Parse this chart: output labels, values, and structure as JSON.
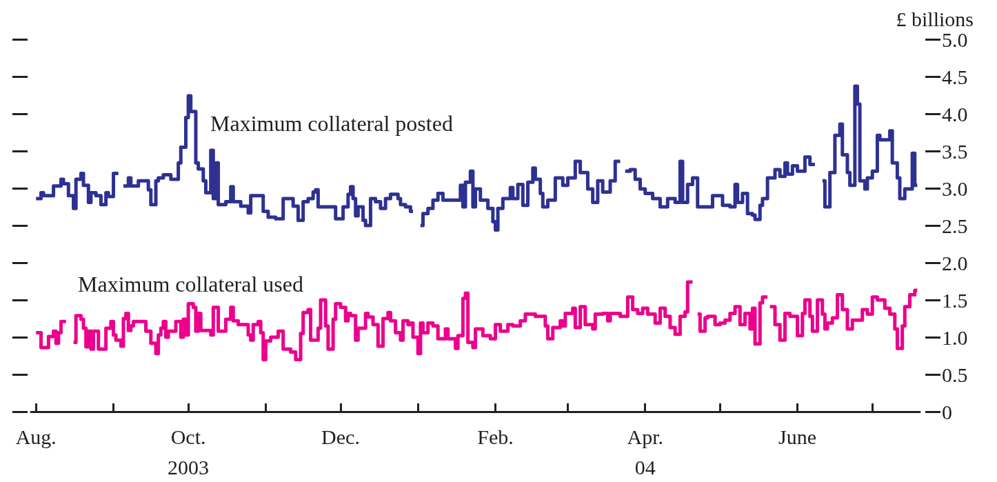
{
  "chart_data": {
    "type": "step",
    "ylabel": "£ billions",
    "marker": "none",
    "grid": false,
    "xlim": [
      "2003-07-30",
      "2004-07-20"
    ],
    "xticks": [
      {
        "value": "2003-08-01",
        "label": "Aug."
      },
      {
        "value": "2003-09-01",
        "label": null
      },
      {
        "value": "2003-10-01",
        "label": "Oct.\n2003"
      },
      {
        "value": "2003-11-01",
        "label": null
      },
      {
        "value": "2003-12-01",
        "label": "Dec."
      },
      {
        "value": "2004-01-01",
        "label": null
      },
      {
        "value": "2004-02-01",
        "label": "Feb."
      },
      {
        "value": "2004-03-01",
        "label": null
      },
      {
        "value": "2004-04-01",
        "label": "Apr.\n04"
      },
      {
        "value": "2004-05-01",
        "label": null
      },
      {
        "value": "2004-06-01",
        "label": "June"
      },
      {
        "value": "2004-07-01",
        "label": null
      }
    ],
    "ylim": [
      0,
      5
    ],
    "yticks": [
      0,
      {
        "value": 0.5,
        "label": "0.5"
      },
      {
        "value": 1,
        "label": "1.0"
      },
      {
        "value": 1.5,
        "label": "1.5"
      },
      {
        "value": 2,
        "label": "2.0"
      },
      {
        "value": 2.5,
        "label": "2.5"
      },
      {
        "value": 3,
        "label": "3.0"
      },
      {
        "value": 3.5,
        "label": "3.5"
      },
      {
        "value": 4,
        "label": "4.0"
      },
      {
        "value": 4.5,
        "label": "4.5"
      },
      {
        "value": 5,
        "label": "5.0"
      }
    ],
    "series": [
      {
        "name": "Maximum collateral posted",
        "color": "#2e3192",
        "x": [
          "2003-08-01",
          "2003-08-03",
          "2003-08-04",
          "2003-08-08",
          "2003-08-11",
          "2003-08-12",
          "2003-08-14",
          "2003-08-16",
          "2003-08-17",
          "2003-08-19",
          "2003-08-20",
          "2003-08-22",
          "2003-08-23",
          "2003-08-25",
          "2003-08-27",
          "2003-08-29",
          "2003-08-30",
          "2003-09-01",
          "2003-09-03",
          "2003-09-05",
          "2003-09-07",
          "2003-09-08",
          "2003-09-11",
          "2003-09-15",
          "2003-09-16",
          "2003-09-18",
          "2003-09-19",
          "2003-09-21",
          "2003-09-24",
          "2003-09-27",
          "2003-09-28",
          "2003-09-30",
          "2003-10-01",
          "2003-10-02",
          "2003-10-04",
          "2003-10-05",
          "2003-10-07",
          "2003-10-08",
          "2003-10-10",
          "2003-10-11",
          "2003-10-12",
          "2003-10-13",
          "2003-10-16",
          "2003-10-18",
          "2003-10-19",
          "2003-10-22",
          "2003-10-25",
          "2003-10-26",
          "2003-10-31",
          "2003-11-02",
          "2003-11-05",
          "2003-11-08",
          "2003-11-12",
          "2003-11-14",
          "2003-11-16",
          "2003-11-18",
          "2003-11-20",
          "2003-11-21",
          "2003-11-22",
          "2003-11-29",
          "2003-12-02",
          "2003-12-04",
          "2003-12-05",
          "2003-12-06",
          "2003-12-07",
          "2003-12-08",
          "2003-12-10",
          "2003-12-11",
          "2003-12-13",
          "2003-12-15",
          "2003-12-17",
          "2003-12-19",
          "2003-12-21",
          "2003-12-24",
          "2003-12-25",
          "2003-12-27",
          "2003-12-29",
          "2003-12-30",
          "2004-01-02",
          "2004-01-03",
          "2004-01-05",
          "2004-01-07",
          "2004-01-09",
          "2004-01-11",
          "2004-01-18",
          "2004-01-19",
          "2004-01-20",
          "2004-01-22",
          "2004-01-23",
          "2004-01-24",
          "2004-01-26",
          "2004-01-29",
          "2004-01-31",
          "2004-02-01",
          "2004-02-02",
          "2004-02-04",
          "2004-02-07",
          "2004-02-08",
          "2004-02-10",
          "2004-02-12",
          "2004-02-14",
          "2004-02-16",
          "2004-02-17",
          "2004-02-19",
          "2004-02-20",
          "2004-02-22",
          "2004-02-25",
          "2004-02-28",
          "2004-03-01",
          "2004-03-04",
          "2004-03-06",
          "2004-03-09",
          "2004-03-11",
          "2004-03-13",
          "2004-03-15",
          "2004-03-18",
          "2004-03-20",
          "2004-03-22",
          "2004-03-24",
          "2004-03-26",
          "2004-03-28",
          "2004-03-30",
          "2004-04-01",
          "2004-04-04",
          "2004-04-07",
          "2004-04-10",
          "2004-04-13",
          "2004-04-15",
          "2004-04-16",
          "2004-04-18",
          "2004-04-20",
          "2004-04-22",
          "2004-04-26",
          "2004-04-28",
          "2004-05-02",
          "2004-05-05",
          "2004-05-07",
          "2004-05-08",
          "2004-05-10",
          "2004-05-12",
          "2004-05-14",
          "2004-05-15",
          "2004-05-17",
          "2004-05-18",
          "2004-05-20",
          "2004-05-23",
          "2004-05-25",
          "2004-05-27",
          "2004-05-28",
          "2004-05-30",
          "2004-06-01",
          "2004-06-03",
          "2004-06-04",
          "2004-06-06",
          "2004-06-08",
          "2004-06-11",
          "2004-06-12",
          "2004-06-14",
          "2004-06-16",
          "2004-06-18",
          "2004-06-19",
          "2004-06-21",
          "2004-06-22",
          "2004-06-24",
          "2004-06-25",
          "2004-06-26",
          "2004-06-28",
          "2004-06-29",
          "2004-07-01",
          "2004-07-03",
          "2004-07-04",
          "2004-07-08",
          "2004-07-09",
          "2004-07-11",
          "2004-07-12",
          "2004-07-14",
          "2004-07-17",
          "2004-07-18",
          "2004-07-19"
        ],
        "values": [
          2.86,
          2.94,
          2.9,
          3.03,
          3.12,
          3.06,
          2.9,
          2.73,
          3.12,
          3.2,
          3.04,
          2.81,
          2.94,
          2.9,
          2.78,
          2.94,
          2.89,
          3.2,
          null,
          3.03,
          3.14,
          3.03,
          3.1,
          2.98,
          2.78,
          3.1,
          3.14,
          3.18,
          3.12,
          3.34,
          3.55,
          3.95,
          4.24,
          4.03,
          3.34,
          3.26,
          3.1,
          2.94,
          3.51,
          2.86,
          3.34,
          2.78,
          2.82,
          3.02,
          2.82,
          2.76,
          2.67,
          2.9,
          2.69,
          2.61,
          2.59,
          2.86,
          2.76,
          2.57,
          2.82,
          2.86,
          2.95,
          2.98,
          2.75,
          2.59,
          2.75,
          2.92,
          3.02,
          2.86,
          2.63,
          2.75,
          2.57,
          2.5,
          2.86,
          2.82,
          2.73,
          2.86,
          2.92,
          2.86,
          2.78,
          2.75,
          2.69,
          null,
          2.5,
          2.66,
          2.73,
          2.84,
          2.93,
          2.84,
          3.04,
          2.75,
          3.08,
          3.23,
          2.75,
          2.99,
          2.84,
          2.73,
          2.55,
          2.44,
          2.73,
          2.86,
          3.01,
          2.86,
          3.05,
          2.77,
          3.08,
          3.27,
          3.12,
          2.93,
          2.75,
          2.84,
          3.14,
          3.04,
          3.14,
          3.36,
          3.21,
          2.99,
          2.81,
          3.1,
          2.95,
          3.1,
          3.36,
          null,
          3.23,
          3.25,
          3.12,
          2.99,
          2.93,
          2.86,
          2.75,
          2.86,
          2.81,
          3.36,
          2.81,
          3.05,
          3.14,
          2.75,
          2.75,
          2.9,
          2.77,
          2.75,
          3.05,
          2.81,
          2.93,
          2.66,
          2.64,
          2.58,
          2.77,
          2.86,
          3.14,
          3.25,
          3.16,
          3.34,
          3.19,
          3.3,
          3.23,
          3.23,
          3.42,
          3.32,
          null,
          3.1,
          2.75,
          3.21,
          3.71,
          3.86,
          3.45,
          3.21,
          3.04,
          4.37,
          4.13,
          3.1,
          2.99,
          3.14,
          3.23,
          3.71,
          3.65,
          3.77,
          3.34,
          3.14,
          2.86,
          2.99,
          3.47,
          3.04,
          3.04
        ]
      },
      {
        "name": "Maximum collateral used",
        "color": "#ec008c",
        "x": [
          "2003-08-01",
          "2003-08-03",
          "2003-08-06",
          "2003-08-08",
          "2003-08-09",
          "2003-08-10",
          "2003-08-11",
          "2003-08-13",
          "2003-08-16",
          "2003-08-17",
          "2003-08-19",
          "2003-08-20",
          "2003-08-21",
          "2003-08-22",
          "2003-08-23",
          "2003-08-24",
          "2003-08-26",
          "2003-08-29",
          "2003-08-31",
          "2003-09-01",
          "2003-09-02",
          "2003-09-04",
          "2003-09-05",
          "2003-09-06",
          "2003-09-07",
          "2003-09-08",
          "2003-09-09",
          "2003-09-14",
          "2003-09-16",
          "2003-09-18",
          "2003-09-19",
          "2003-09-20",
          "2003-09-21",
          "2003-09-22",
          "2003-09-23",
          "2003-09-26",
          "2003-09-28",
          "2003-09-29",
          "2003-09-30",
          "2003-10-01",
          "2003-10-03",
          "2003-10-04",
          "2003-10-05",
          "2003-10-06",
          "2003-10-10",
          "2003-10-11",
          "2003-10-13",
          "2003-10-16",
          "2003-10-18",
          "2003-10-19",
          "2003-10-21",
          "2003-10-25",
          "2003-10-26",
          "2003-10-27",
          "2003-10-29",
          "2003-10-30",
          "2003-10-31",
          "2003-11-01",
          "2003-11-03",
          "2003-11-06",
          "2003-11-08",
          "2003-11-11",
          "2003-11-13",
          "2003-11-15",
          "2003-11-16",
          "2003-11-18",
          "2003-11-19",
          "2003-11-22",
          "2003-11-23",
          "2003-11-25",
          "2003-11-26",
          "2003-11-28",
          "2003-11-29",
          "2003-12-01",
          "2003-12-03",
          "2003-12-04",
          "2003-12-05",
          "2003-12-07",
          "2003-12-08",
          "2003-12-11",
          "2003-12-12",
          "2003-12-14",
          "2003-12-16",
          "2003-12-18",
          "2003-12-20",
          "2003-12-21",
          "2003-12-23",
          "2003-12-25",
          "2003-12-26",
          "2003-12-28",
          "2003-12-29",
          "2003-12-30",
          "2004-01-01",
          "2004-01-02",
          "2004-01-03",
          "2004-01-05",
          "2004-01-07",
          "2004-01-09",
          "2004-01-12",
          "2004-01-13",
          "2004-01-16",
          "2004-01-17",
          "2004-01-19",
          "2004-01-20",
          "2004-01-21",
          "2004-01-23",
          "2004-01-24",
          "2004-01-27",
          "2004-01-30",
          "2004-02-01",
          "2004-02-03",
          "2004-02-06",
          "2004-02-08",
          "2004-02-11",
          "2004-02-13",
          "2004-02-17",
          "2004-02-21",
          "2004-02-22",
          "2004-02-24",
          "2004-02-27",
          "2004-02-28",
          "2004-02-29",
          "2004-03-03",
          "2004-03-04",
          "2004-03-06",
          "2004-03-08",
          "2004-03-11",
          "2004-03-12",
          "2004-03-15",
          "2004-03-17",
          "2004-03-18",
          "2004-03-22",
          "2004-03-25",
          "2004-03-27",
          "2004-03-29",
          "2004-03-31",
          "2004-04-02",
          "2004-04-05",
          "2004-04-07",
          "2004-04-09",
          "2004-04-11",
          "2004-04-13",
          "2004-04-15",
          "2004-04-17",
          "2004-04-18",
          "2004-04-20",
          "2004-04-22",
          "2004-04-23",
          "2004-04-25",
          "2004-04-26",
          "2004-04-29",
          "2004-05-01",
          "2004-05-03",
          "2004-05-05",
          "2004-05-07",
          "2004-05-09",
          "2004-05-11",
          "2004-05-13",
          "2004-05-14",
          "2004-05-15",
          "2004-05-17",
          "2004-05-18",
          "2004-05-20",
          "2004-05-21",
          "2004-05-23",
          "2004-05-25",
          "2004-05-27",
          "2004-05-29",
          "2004-06-01",
          "2004-06-03",
          "2004-06-04",
          "2004-06-06",
          "2004-06-07",
          "2004-06-09",
          "2004-06-11",
          "2004-06-12",
          "2004-06-13",
          "2004-06-15",
          "2004-06-17",
          "2004-06-19",
          "2004-06-21",
          "2004-06-23",
          "2004-06-27",
          "2004-06-29",
          "2004-07-01",
          "2004-07-03",
          "2004-07-06",
          "2004-07-08",
          "2004-07-10",
          "2004-07-11",
          "2004-07-13",
          "2004-07-14",
          "2004-07-16",
          "2004-07-18",
          "2004-07-19"
        ],
        "values": [
          1.06,
          0.86,
          1.01,
          1.08,
          0.92,
          1.06,
          1.21,
          null,
          0.93,
          1.29,
          1.24,
          1.12,
          0.87,
          1.08,
          0.84,
          1.08,
          0.84,
          1.12,
          1.21,
          1.03,
          0.96,
          0.88,
          1.25,
          1.32,
          1.09,
          1.15,
          1.21,
          1.08,
          0.92,
          0.78,
          1.03,
          1.12,
          1.21,
          1.0,
          1.08,
          1.21,
          1.0,
          1.24,
          1.03,
          1.45,
          1.4,
          1.08,
          1.32,
          1.09,
          1.03,
          1.4,
          1.08,
          1.24,
          1.4,
          1.22,
          1.17,
          1.03,
          0.96,
          1.17,
          1.21,
          1.06,
          0.7,
          0.95,
          1.0,
          1.08,
          0.84,
          0.8,
          0.7,
          1.05,
          1.33,
          1.37,
          0.96,
          1.12,
          1.5,
          1.15,
          0.84,
          1.24,
          1.45,
          1.4,
          1.22,
          1.32,
          1.29,
          0.96,
          1.12,
          1.32,
          1.27,
          1.17,
          0.88,
          1.25,
          1.33,
          1.22,
          1.06,
          0.96,
          1.22,
          1.17,
          1.19,
          1.0,
          0.78,
          1.19,
          1.06,
          1.19,
          1.15,
          0.98,
          1.11,
          0.98,
          0.85,
          1.02,
          1.52,
          1.59,
          0.93,
          0.86,
          1.11,
          1.02,
          0.98,
          1.17,
          1.08,
          1.17,
          1.15,
          1.22,
          1.31,
          1.28,
          1.15,
          0.98,
          1.13,
          1.22,
          1.15,
          1.32,
          1.39,
          1.13,
          1.41,
          1.17,
          1.11,
          1.31,
          1.32,
          1.22,
          1.32,
          1.28,
          1.54,
          1.37,
          1.32,
          1.39,
          1.31,
          1.19,
          1.39,
          1.28,
          1.13,
          1.04,
          1.28,
          1.34,
          1.74,
          null,
          1.31,
          1.08,
          1.26,
          1.28,
          1.17,
          1.19,
          1.23,
          1.32,
          1.41,
          1.17,
          1.32,
          1.11,
          1.39,
          0.91,
          1.46,
          1.54,
          null,
          1.41,
          1.17,
          0.96,
          1.32,
          1.28,
          1.02,
          1.32,
          1.5,
          1.28,
          1.08,
          1.5,
          1.31,
          1.11,
          1.19,
          1.26,
          1.57,
          1.37,
          1.11,
          1.23,
          1.37,
          1.31,
          1.54,
          1.5,
          1.39,
          1.31,
          1.11,
          0.85,
          1.15,
          1.41,
          1.57,
          1.63,
          1.63
        ]
      }
    ]
  }
}
